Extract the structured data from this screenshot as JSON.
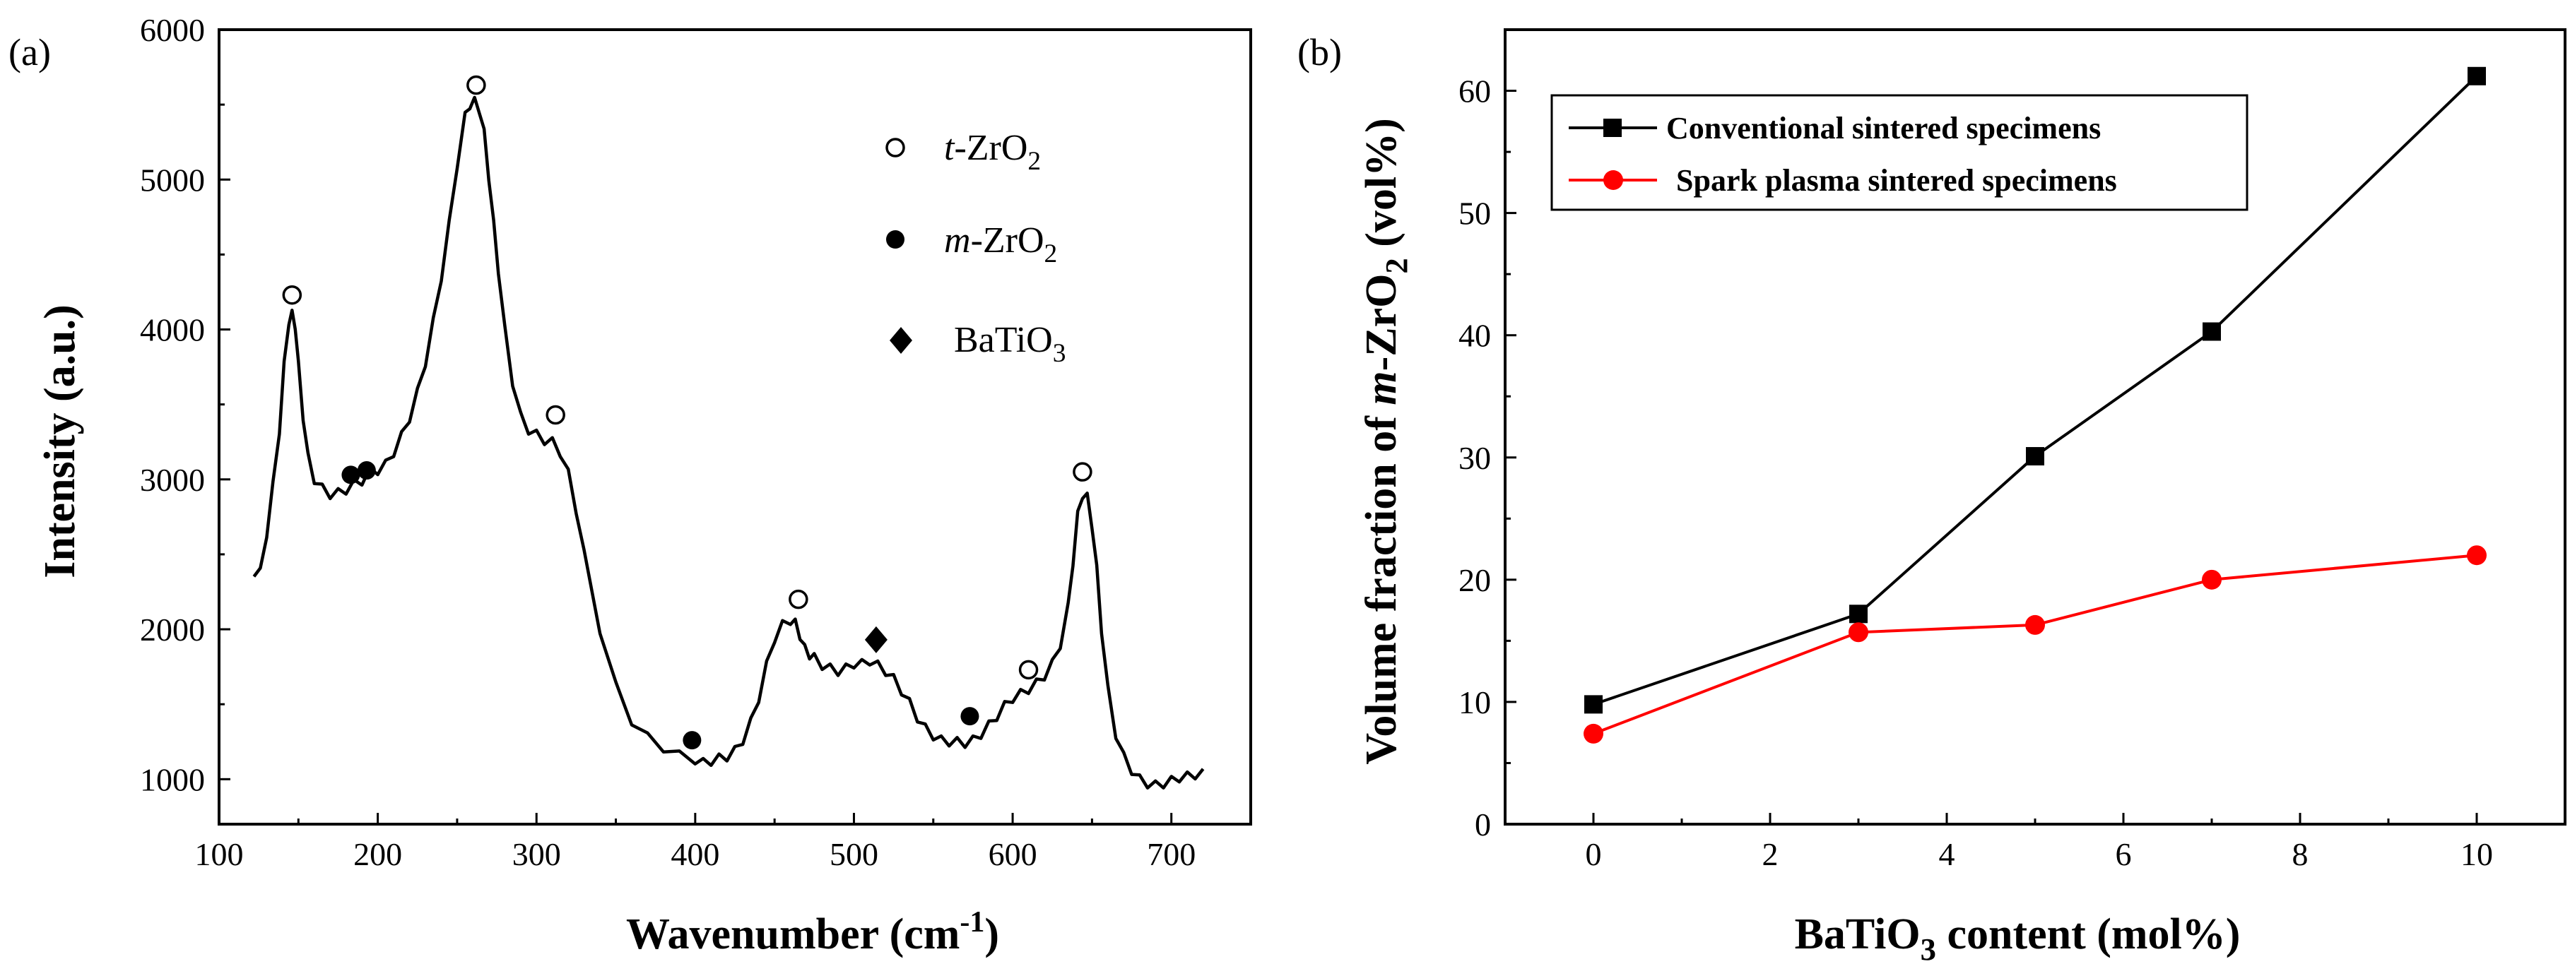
{
  "figure": {
    "panel_a_label": "(a)",
    "panel_b_label": "(b)"
  },
  "chart_data": [
    {
      "type": "line",
      "panel": "(a)",
      "xlabel": "Wavenumber",
      "xlabel_unit_base": "(cm",
      "xlabel_unit_sup": "-1",
      "xlabel_unit_end": ")",
      "ylabel": "Intensity (a.u.)",
      "xlim": [
        100,
        750
      ],
      "ylim": [
        700,
        6000
      ],
      "xticks": [
        100,
        200,
        300,
        400,
        500,
        600,
        700
      ],
      "yticks": [
        1000,
        2000,
        3000,
        4000,
        5000,
        6000
      ],
      "spectrum": {
        "x": [
          122,
          126,
          130,
          134,
          138,
          141,
          144,
          146,
          148,
          150,
          153,
          156,
          160,
          165,
          170,
          175,
          180,
          185,
          190,
          195,
          200,
          205,
          210,
          215,
          220,
          225,
          230,
          235,
          240,
          245,
          250,
          255,
          258,
          261,
          264,
          267,
          270,
          273,
          276,
          280,
          285,
          290,
          295,
          300,
          305,
          310,
          315,
          320,
          325,
          330,
          340,
          350,
          360,
          370,
          380,
          390,
          400,
          405,
          410,
          415,
          420,
          425,
          430,
          435,
          440,
          445,
          450,
          455,
          460,
          463,
          466,
          469,
          472,
          475,
          480,
          485,
          490,
          495,
          500,
          505,
          510,
          515,
          520,
          525,
          530,
          535,
          540,
          545,
          550,
          555,
          560,
          565,
          570,
          575,
          580,
          585,
          590,
          595,
          600,
          605,
          610,
          615,
          620,
          625,
          630,
          635,
          638,
          641,
          644,
          647,
          650,
          653,
          656,
          660,
          665,
          670,
          675,
          680,
          685,
          690,
          695,
          700,
          705,
          710,
          715,
          720
        ],
        "y": [
          2380,
          2380,
          2640,
          2960,
          3330,
          3760,
          4060,
          4100,
          4030,
          3760,
          3420,
          3150,
          3000,
          2940,
          2900,
          2910,
          2930,
          2970,
          2990,
          3050,
          3060,
          3100,
          3180,
          3290,
          3410,
          3580,
          3780,
          4050,
          4350,
          4700,
          5100,
          5420,
          5500,
          5520,
          5470,
          5310,
          5020,
          4700,
          4400,
          4000,
          3650,
          3420,
          3330,
          3300,
          3260,
          3250,
          3180,
          3040,
          2800,
          2500,
          2000,
          1620,
          1390,
          1280,
          1210,
          1160,
          1130,
          1110,
          1120,
          1140,
          1150,
          1190,
          1260,
          1380,
          1540,
          1760,
          1940,
          2030,
          2060,
          2040,
          1960,
          1870,
          1830,
          1810,
          1760,
          1740,
          1720,
          1740,
          1770,
          1770,
          1790,
          1760,
          1720,
          1670,
          1590,
          1510,
          1410,
          1340,
          1290,
          1260,
          1250,
          1250,
          1240,
          1260,
          1300,
          1360,
          1420,
          1490,
          1540,
          1570,
          1600,
          1640,
          1690,
          1770,
          1900,
          2150,
          2450,
          2760,
          2900,
          2880,
          2700,
          2400,
          2000,
          1600,
          1300,
          1150,
          1060,
          1000,
          970,
          960,
          970,
          990,
          1010,
          1020,
          1030,
          1040
        ]
      },
      "markers": {
        "t_open": [
          {
            "x": 146,
            "y": 4230
          },
          {
            "x": 262,
            "y": 5630
          },
          {
            "x": 312,
            "y": 3430
          },
          {
            "x": 465,
            "y": 2200
          },
          {
            "x": 610,
            "y": 1730
          },
          {
            "x": 644,
            "y": 3050
          }
        ],
        "m_filled": [
          {
            "x": 183,
            "y": 3030
          },
          {
            "x": 193,
            "y": 3060
          },
          {
            "x": 398,
            "y": 1260
          },
          {
            "x": 573,
            "y": 1420
          }
        ],
        "batio3": [
          {
            "x": 514,
            "y": 1930
          }
        ]
      },
      "legend": {
        "t_label_italic": "t",
        "m_label_italic": "m",
        "zro_text": "-ZrO",
        "sub2": "2",
        "batio_text": "BaTiO",
        "sub3": "3"
      }
    },
    {
      "type": "line",
      "panel": "(b)",
      "xlabel_main": "BaTiO",
      "xlabel_sub": "3",
      "xlabel_tail": " content (mol%)",
      "ylabel_head": "Volume fraction of ",
      "ylabel_italic": "m",
      "ylabel_mid": "-ZrO",
      "ylabel_sub": "2",
      "ylabel_tail": " (vol%)",
      "xlim": [
        -1,
        11
      ],
      "ylim": [
        0,
        65
      ],
      "xticks": [
        0,
        2,
        4,
        6,
        8,
        10
      ],
      "yticks": [
        0,
        10,
        20,
        30,
        40,
        50,
        60
      ],
      "series": [
        {
          "name": "Conventional sintered specimens",
          "color": "#000000",
          "marker": "square",
          "x": [
            0,
            3,
            5,
            7,
            10
          ],
          "y": [
            9.8,
            17.2,
            30.1,
            40.3,
            61.2
          ]
        },
        {
          "name": "Spark plasma sintered specimens",
          "color": "#ff0000",
          "marker": "circle",
          "x": [
            0,
            3,
            5,
            7,
            10
          ],
          "y": [
            7.4,
            15.7,
            16.3,
            20.0,
            22.0
          ]
        }
      ],
      "legend_position": "top-left"
    }
  ]
}
